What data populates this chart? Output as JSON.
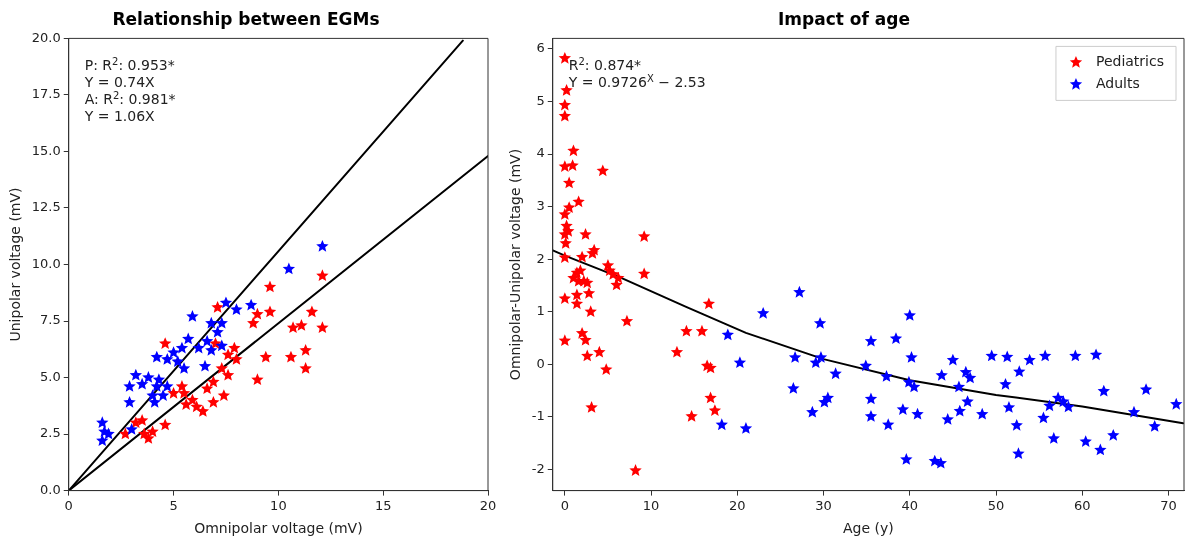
{
  "chart_data": [
    {
      "type": "scatter",
      "title": "Relationship between EGMs",
      "xlabel": "Omnipolar voltage (mV)",
      "ylabel": "Unipolar voltage (mV)",
      "marker": "star",
      "xlim": [
        0,
        20
      ],
      "ylim": [
        0,
        20
      ],
      "xticks": [
        0,
        5,
        10,
        15,
        20
      ],
      "yticks": [
        {
          "value": 0,
          "label": "0.0"
        },
        {
          "value": 2.5,
          "label": "2.5"
        },
        {
          "value": 5,
          "label": "5.0"
        },
        {
          "value": 7.5,
          "label": "7.5"
        },
        {
          "value": 10,
          "label": "10.0"
        },
        {
          "value": 12.5,
          "label": "12.5"
        },
        {
          "value": 15,
          "label": "15.0"
        },
        {
          "value": 17.5,
          "label": "17.5"
        },
        {
          "value": 20,
          "label": "20.0"
        }
      ],
      "annotations": [
        "P: R$^{2}$: 0.953*",
        "Y = 0.74X",
        "A: R$^{2}$: 0.981*",
        "Y = 1.06X"
      ],
      "series": [
        {
          "color": "#0000ff",
          "x": [
            12.1,
            10.5,
            8.7,
            8.0,
            7.5,
            5.9,
            7.3,
            6.8,
            7.1,
            6.6,
            5.7,
            6.2,
            6.8,
            7.3,
            5.4,
            5.0,
            4.2,
            4.7,
            5.2,
            6.5,
            5.5,
            3.2,
            3.8,
            4.3,
            3.5,
            2.9,
            4.2,
            4.7,
            4.0,
            4.5,
            2.9,
            4.1,
            3.0,
            1.6,
            1.7,
            1.6,
            1.9
          ],
          "values": [
            10.8,
            9.8,
            8.2,
            8.0,
            8.3,
            7.7,
            7.4,
            7.4,
            7.0,
            6.6,
            6.7,
            6.3,
            6.2,
            6.4,
            6.3,
            6.1,
            5.9,
            5.8,
            5.7,
            5.5,
            5.4,
            5.1,
            5.0,
            4.9,
            4.7,
            4.6,
            4.6,
            4.6,
            4.2,
            4.2,
            3.9,
            3.9,
            2.7,
            3.0,
            2.6,
            2.2,
            2.5
          ]
        },
        {
          "color": "#ff0000",
          "x": [
            12.1,
            9.6,
            7.1,
            9.0,
            9.6,
            11.6,
            11.1,
            10.7,
            12.1,
            8.8,
            7.9,
            7.0,
            4.6,
            7.6,
            8.0,
            9.4,
            10.6,
            11.3,
            11.3,
            9.0,
            7.3,
            7.6,
            6.9,
            6.6,
            7.4,
            5.4,
            5.5,
            5.0,
            5.9,
            5.6,
            6.1,
            6.4,
            6.9,
            3.5,
            3.6,
            4.6,
            4.0,
            2.7,
            3.8,
            3.2
          ],
          "values": [
            9.5,
            9.0,
            8.1,
            7.8,
            7.9,
            7.9,
            7.3,
            7.2,
            7.2,
            7.4,
            6.3,
            6.5,
            6.5,
            6.0,
            5.8,
            5.9,
            5.9,
            6.2,
            5.4,
            4.9,
            5.4,
            5.1,
            4.8,
            4.5,
            4.2,
            4.6,
            4.3,
            4.3,
            4.0,
            3.8,
            3.7,
            3.5,
            3.9,
            3.1,
            2.5,
            2.9,
            2.6,
            2.5,
            2.3,
            3.0
          ]
        },
        {
          "type": "line",
          "marker": "none",
          "color": "#000000",
          "x": [
            0,
            18.8
          ],
          "values": [
            0,
            19.9
          ]
        },
        {
          "type": "line",
          "marker": "none",
          "color": "#000000",
          "x": [
            0,
            20
          ],
          "values": [
            0,
            14.8
          ]
        }
      ]
    },
    {
      "type": "scatter",
      "title": "Impact of age",
      "xlabel": "Age (y)",
      "ylabel": "Omnipolar-Unipolar voltage (mV)",
      "marker": "star",
      "legend": "top right",
      "xlim": [
        -1.4,
        71.8
      ],
      "ylim": [
        -2.4,
        6.2
      ],
      "xticks": [
        0,
        10,
        20,
        30,
        40,
        50,
        60,
        70
      ],
      "yticks": [
        -2,
        -1,
        0,
        1,
        2,
        3,
        4,
        5,
        6
      ],
      "annotations": [
        "R$^{2}$: 0.874*",
        "Y = 0.9726$^{X}$ − 2.53"
      ],
      "series": [
        {
          "name": "Pediatrics",
          "color": "#ff0000",
          "x": [
            0.0,
            0.2,
            0.0,
            0.0,
            1.0,
            0.0,
            0.9,
            0.5,
            4.4,
            1.6,
            0.5,
            0.0,
            0.2,
            0.0,
            0.4,
            0.1,
            2.4,
            3.4,
            3.2,
            9.2,
            2.0,
            0.0,
            9.2,
            5.0,
            5.2,
            5.6,
            6.2,
            6.0,
            1.4,
            1.8,
            1.0,
            1.6,
            2.2,
            2.6,
            2.8,
            0.0,
            1.4,
            1.4,
            3.0,
            16.7,
            7.2,
            14.1,
            15.9,
            0.0,
            2.0,
            2.4,
            2.6,
            4.0,
            13.0,
            4.8,
            16.5,
            16.9,
            3.1,
            14.7,
            16.9,
            17.4,
            8.2
          ],
          "values": [
            5.82,
            5.21,
            4.93,
            4.72,
            4.06,
            3.76,
            3.78,
            3.45,
            3.68,
            3.09,
            2.98,
            2.85,
            2.63,
            2.47,
            2.53,
            2.3,
            2.47,
            2.17,
            2.11,
            2.43,
            2.04,
            2.03,
            1.72,
            1.88,
            1.78,
            1.71,
            1.64,
            1.51,
            1.74,
            1.78,
            1.64,
            1.58,
            1.58,
            1.55,
            1.35,
            1.25,
            1.32,
            1.15,
            1.0,
            1.15,
            0.82,
            0.63,
            0.63,
            0.45,
            0.59,
            0.46,
            0.16,
            0.23,
            0.23,
            -0.1,
            -0.03,
            -0.07,
            -0.82,
            -0.99,
            -0.64,
            -0.88,
            -2.02
          ]
        },
        {
          "name": "Adults",
          "color": "#0000ff",
          "x": [
            18.9,
            20.3,
            18.2,
            21.0,
            23.0,
            27.2,
            29.6,
            26.7,
            29.1,
            29.7,
            31.4,
            26.5,
            28.7,
            30.1,
            30.5,
            35.5,
            34.9,
            35.5,
            35.5,
            37.5,
            37.3,
            38.4,
            40.0,
            40.2,
            39.9,
            40.5,
            39.2,
            40.9,
            39.6,
            42.9,
            43.6,
            44.4,
            43.7,
            45.0,
            45.7,
            46.5,
            47.0,
            46.7,
            45.8,
            48.4,
            49.5,
            51.3,
            51.1,
            51.5,
            52.6,
            52.4,
            52.7,
            53.9,
            55.7,
            55.5,
            56.2,
            56.7,
            57.2,
            57.8,
            58.4,
            59.2,
            61.6,
            60.4,
            62.1,
            62.5,
            63.6,
            66.0,
            67.4,
            68.4,
            70.9
          ],
          "values": [
            0.56,
            0.03,
            -1.15,
            -1.22,
            0.97,
            1.37,
            0.78,
            0.13,
            0.03,
            0.13,
            -0.18,
            -0.46,
            -0.91,
            -0.72,
            -0.64,
            0.44,
            -0.03,
            -0.66,
            -0.99,
            -1.15,
            -0.23,
            0.49,
            0.93,
            0.13,
            -0.34,
            -0.43,
            -0.86,
            -0.95,
            -1.81,
            -1.84,
            -1.88,
            -1.05,
            -0.21,
            0.08,
            -0.43,
            -0.15,
            -0.26,
            -0.71,
            -0.89,
            -0.95,
            0.16,
            0.14,
            -0.38,
            -0.82,
            -1.7,
            -1.16,
            -0.14,
            0.08,
            0.16,
            -1.02,
            -0.79,
            -1.41,
            -0.64,
            -0.71,
            -0.81,
            0.16,
            0.18,
            -1.47,
            -1.63,
            -0.51,
            -1.35,
            -0.91,
            -0.48,
            -1.18,
            -0.76
          ]
        },
        {
          "type": "line",
          "marker": "none",
          "color": "#000000",
          "x": [
            -1.4,
            0,
            6.6,
            14,
            21,
            30,
            40,
            50,
            60,
            71.7
          ],
          "values": [
            2.17,
            2.07,
            1.64,
            1.1,
            0.6,
            0.1,
            -0.3,
            -0.58,
            -0.8,
            -1.12
          ]
        }
      ]
    }
  ]
}
